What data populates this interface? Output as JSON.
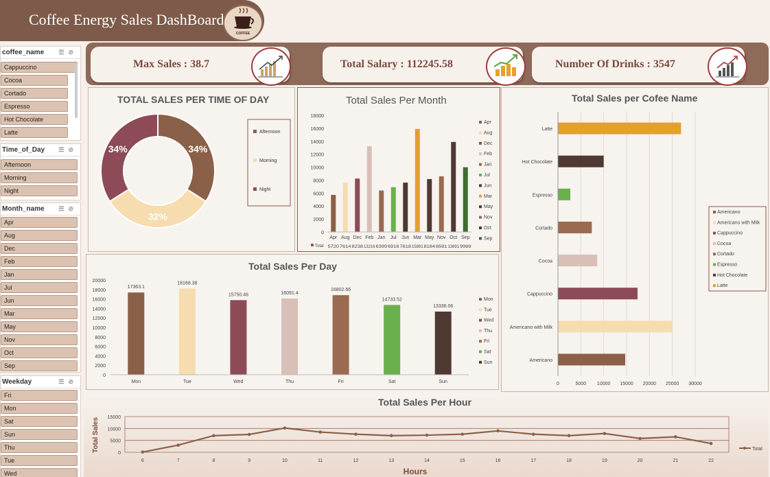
{
  "header": {
    "title": "Coffee Energy Sales DashBoard",
    "logo_text": "COFFEE"
  },
  "kpis": [
    {
      "label": "Max Sales : 38.7"
    },
    {
      "label": "Total Salary : 112245.58"
    },
    {
      "label": "Number Of Drinks : 3547"
    }
  ],
  "slicers": {
    "coffee": {
      "title": "coffee_name",
      "items": [
        "Cappuccino",
        "Cocoa",
        "Cortado",
        "Espresso",
        "Hot Chocolate",
        "Latte"
      ]
    },
    "time_of_day": {
      "title": "Time_of_Day",
      "items": [
        "Afternoon",
        "Morning",
        "Night"
      ]
    },
    "month": {
      "title": "Month_name",
      "items": [
        "Apr",
        "Aug",
        "Dec",
        "Feb",
        "Jan",
        "Jul",
        "Jun",
        "Mar",
        "May",
        "Nov",
        "Oct",
        "Sep"
      ]
    },
    "weekday": {
      "title": "Weekday",
      "items": [
        "Fri",
        "Mon",
        "Sat",
        "Sun",
        "Thu",
        "Tue",
        "Wed"
      ]
    }
  },
  "colors": {
    "brown": "#8b6048",
    "maroon": "#8d4b57",
    "cream": "#f6dcae",
    "blush": "#d8c0b8",
    "green": "#6ab04c",
    "dark": "#4e3a32",
    "mocha": "#9b6a52",
    "gold": "#e2a02c",
    "olive": "#3f6e2f"
  },
  "chart_data": [
    {
      "id": "time_of_day",
      "type": "pie",
      "title": "TOTAL SALES PER TIME OF DAY",
      "slices": [
        {
          "name": "Afternoon",
          "value": 34,
          "label": "34%",
          "color": "#8b6048"
        },
        {
          "name": "Morning",
          "value": 32,
          "label": "32%",
          "color": "#f6dcae"
        },
        {
          "name": "Night",
          "value": 34,
          "label": "34%",
          "color": "#8d4b57"
        }
      ]
    },
    {
      "id": "month",
      "type": "bar",
      "title": "Total Sales Per Month",
      "categories": [
        "Apr",
        "Aug",
        "Dec",
        "Feb",
        "Jan",
        "Jul",
        "Jun",
        "Mar",
        "May",
        "Nov",
        "Oct",
        "Sep"
      ],
      "values": [
        5720,
        7614,
        8238,
        13216,
        6399,
        6916,
        7618,
        15891,
        8164,
        8591,
        13891,
        9989
      ],
      "table_values": [
        "5720",
        "7614",
        "8238",
        "13216",
        "6399",
        "6916",
        "7618",
        "15891",
        "8164",
        "8591",
        "13891",
        "9989"
      ],
      "colors": [
        "#8b6048",
        "#f6dcae",
        "#8d4b57",
        "#d8c0b8",
        "#9b6a52",
        "#6ab04c",
        "#4e3a32",
        "#e2a02c",
        "#4e3a32",
        "#9b6a52",
        "#4e3a32",
        "#3f6e2f"
      ],
      "legend": [
        "Apr",
        "Aug",
        "Dec",
        "Feb",
        "Jan",
        "Jul",
        "Jun",
        "Mar",
        "May",
        "Nov",
        "Oct",
        "Sep"
      ],
      "table_label": "Total",
      "ylim": [
        0,
        18000
      ],
      "yticks": [
        0,
        2000,
        4000,
        6000,
        8000,
        10000,
        12000,
        14000,
        16000,
        18000
      ]
    },
    {
      "id": "coffee_name",
      "type": "bar",
      "orientation": "horizontal",
      "title": "Total Sales per Cofee Name",
      "categories": [
        "Latte",
        "Hot Chocolate",
        "Espresso",
        "Cortado",
        "Cocoa",
        "Cappuccino",
        "Americano with Milk",
        "Americano"
      ],
      "values": [
        26900,
        10000,
        2700,
        7400,
        8600,
        17400,
        25000,
        14700
      ],
      "colors": [
        "#e2a02c",
        "#4e3a32",
        "#6ab04c",
        "#9b6a52",
        "#d8c0b8",
        "#8d4b57",
        "#f6dcae",
        "#8b6048"
      ],
      "legend": [
        "Americano",
        "Americano with Milk",
        "Cappuccino",
        "Cocoa",
        "Cortado",
        "Espresso",
        "Hot Chocolate",
        "Latte"
      ],
      "legend_colors": [
        "#8b6048",
        "#f6dcae",
        "#8d4b57",
        "#d8c0b8",
        "#9b6a52",
        "#6ab04c",
        "#4e3a32",
        "#e2a02c"
      ],
      "xlim": [
        0,
        30000
      ],
      "xticks": [
        0,
        5000,
        10000,
        15000,
        20000,
        25000,
        30000
      ]
    },
    {
      "id": "day",
      "type": "bar",
      "title": "Total Sales Per Day",
      "categories": [
        "Mon",
        "Tue",
        "Wed",
        "Thu",
        "Fri",
        "Sat",
        "Sun"
      ],
      "values": [
        17363.1,
        18168.38,
        15750.46,
        16091.4,
        16802.66,
        14733.52,
        13336.06
      ],
      "labels": [
        "17363.1",
        "18168.38",
        "15750.46",
        "16091.4",
        "16802.66",
        "14733.52",
        "13336.06"
      ],
      "colors": [
        "#8b6048",
        "#f6dcae",
        "#8d4b57",
        "#d8c0b8",
        "#9b6a52",
        "#6ab04c",
        "#4e3a32"
      ],
      "legend": [
        "Mon",
        "Tue",
        "Wed",
        "Thu",
        "Fri",
        "Sat",
        "Sun"
      ],
      "ylim": [
        0,
        20000
      ],
      "yticks": [
        0,
        2000,
        4000,
        6000,
        8000,
        10000,
        12000,
        14000,
        16000,
        18000,
        20000
      ]
    },
    {
      "id": "hour",
      "type": "line",
      "title": "Total Sales Per Hour",
      "xlabel": "Hours",
      "ylabel": "Total Sales",
      "x": [
        "6",
        "7",
        "8",
        "9",
        "10",
        "11",
        "12",
        "13",
        "14",
        "15",
        "16",
        "17",
        "18",
        "19",
        "20",
        "21",
        "22"
      ],
      "series": [
        {
          "name": "Total",
          "values": [
            100,
            3000,
            7000,
            7500,
            10200,
            8500,
            7600,
            7000,
            7200,
            7600,
            9000,
            7600,
            7000,
            7900,
            5800,
            6500,
            3700
          ]
        }
      ],
      "ylim": [
        0,
        15000
      ],
      "yticks": [
        0,
        5000,
        10000,
        15000
      ],
      "color": "#8b6048"
    }
  ]
}
